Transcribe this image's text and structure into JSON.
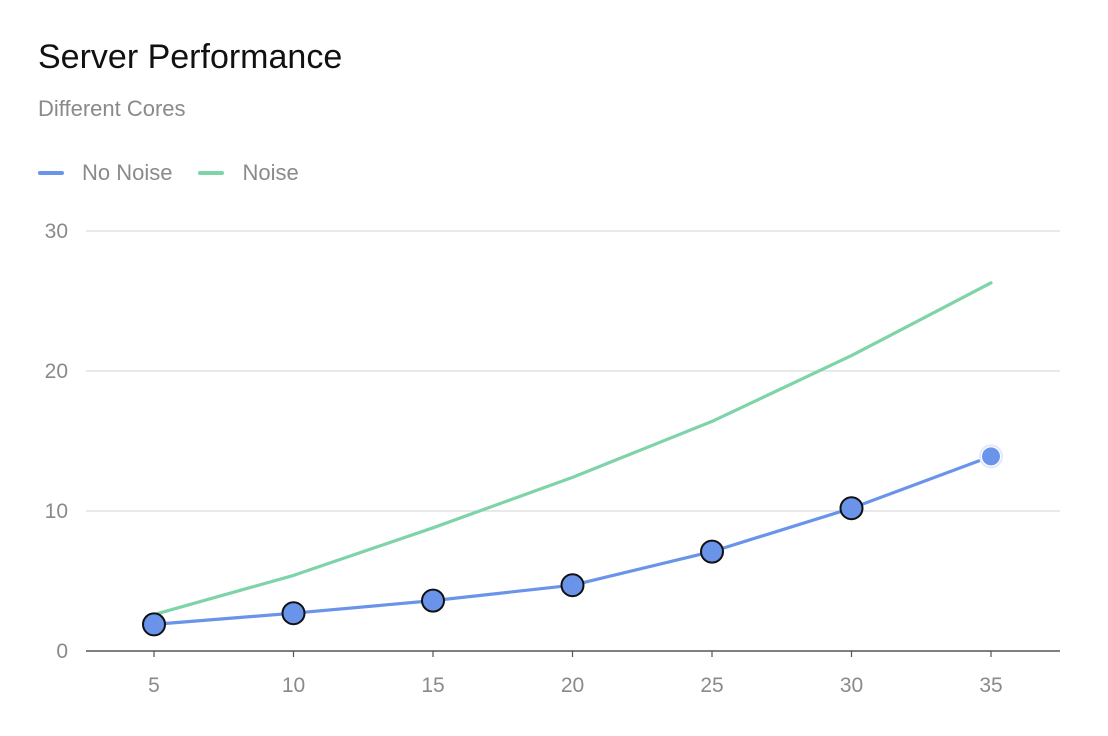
{
  "chart_data": {
    "type": "line",
    "title": "Server Performance",
    "subtitle": "Different Cores",
    "xlabel": "",
    "ylabel": "",
    "x": [
      5,
      10,
      15,
      20,
      25,
      30,
      35
    ],
    "xticks": [
      "5",
      "10",
      "15",
      "20",
      "25",
      "30",
      "35"
    ],
    "yticks": [
      "0",
      "10",
      "20",
      "30"
    ],
    "ylim": [
      0,
      30
    ],
    "grid": true,
    "legend_position": "top-left",
    "series": [
      {
        "name": "No Noise",
        "color": "#6a93ea",
        "values": [
          1.9,
          2.7,
          3.6,
          4.7,
          7.1,
          10.2,
          13.9
        ],
        "markers": true
      },
      {
        "name": "Noise",
        "color": "#7fd3a8",
        "values": [
          2.6,
          5.4,
          8.8,
          12.4,
          16.4,
          21.1,
          26.3
        ],
        "markers": false
      }
    ]
  }
}
